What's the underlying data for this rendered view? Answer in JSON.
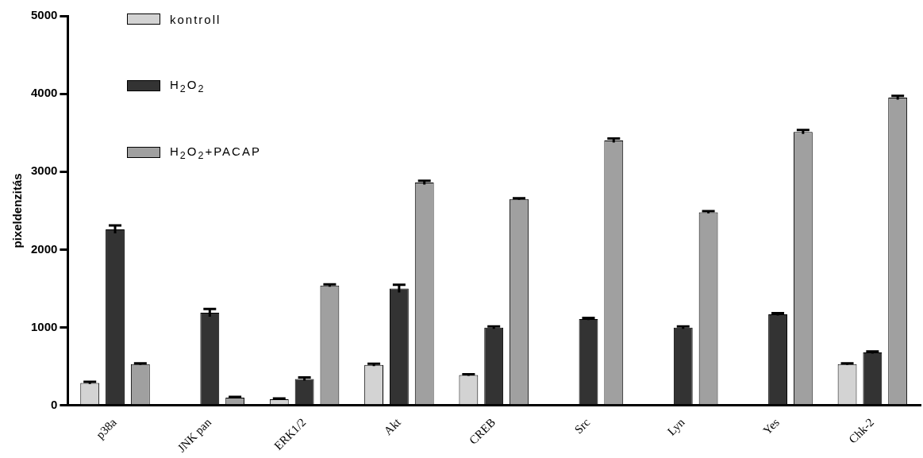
{
  "chart_data": {
    "type": "bar",
    "ylabel": "pixeldenzitás",
    "categories": [
      "p38a",
      "JNK pan",
      "ERK1/2",
      "Akt",
      "CREB",
      "Src",
      "Lyn",
      "Yes",
      "Chk-2"
    ],
    "series": [
      {
        "name": "kontroll",
        "color": "#d3d3d3",
        "values": [
          290,
          null,
          80,
          520,
          390,
          null,
          null,
          null,
          530
        ],
        "errors": [
          15,
          null,
          10,
          15,
          10,
          null,
          null,
          null,
          10
        ]
      },
      {
        "name": "H$_{2}$O$_{2}$",
        "color": "#333333",
        "values": [
          2260,
          1190,
          340,
          1500,
          1000,
          1110,
          1000,
          1170,
          680
        ],
        "errors": [
          50,
          50,
          20,
          50,
          15,
          15,
          15,
          15,
          15
        ]
      },
      {
        "name": "H$_{2}$O$_{2}$+PACAP",
        "color": "#a0a0a0",
        "values": [
          530,
          100,
          1540,
          2860,
          2650,
          3400,
          2480,
          3510,
          3950
        ],
        "errors": [
          10,
          10,
          15,
          25,
          10,
          25,
          15,
          25,
          25
        ]
      }
    ],
    "ylim": [
      0,
      5000
    ],
    "yticks": [
      0,
      1000,
      2000,
      3000,
      4000,
      5000
    ],
    "grid": false,
    "legend": "top left"
  }
}
